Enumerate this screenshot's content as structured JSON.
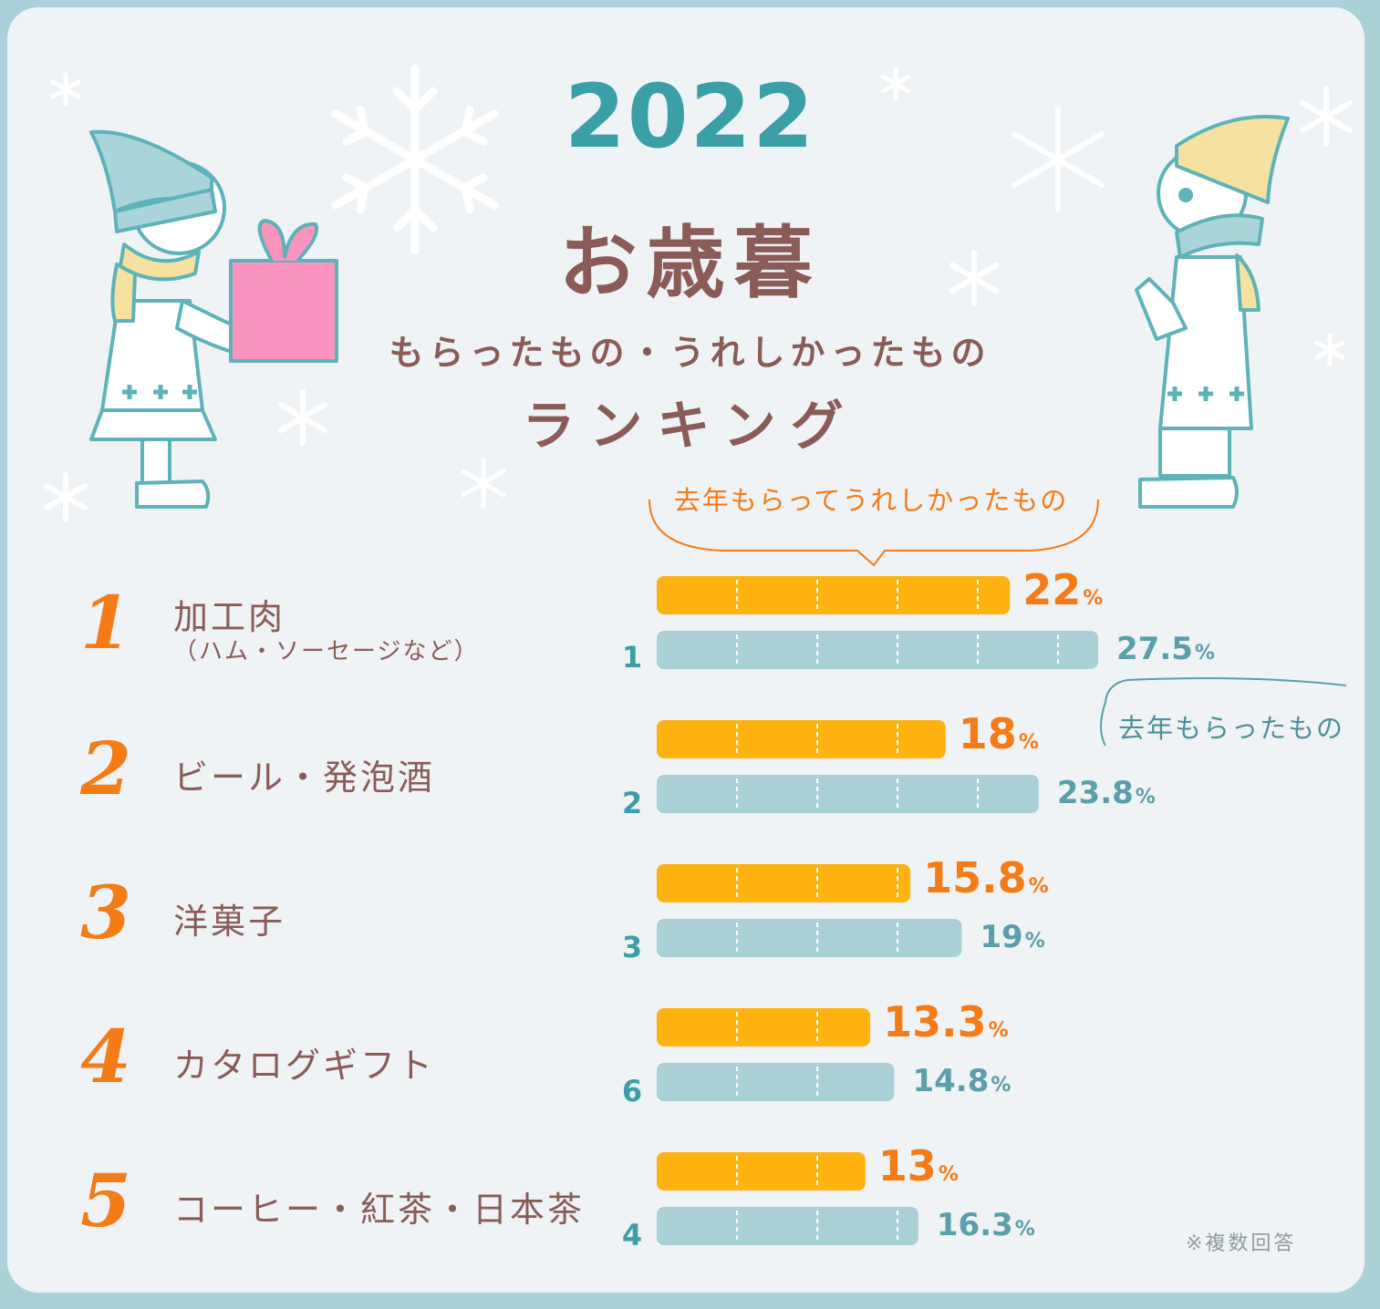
{
  "header": {
    "year": "2022",
    "title": "お歳暮",
    "subtitle": "もらったもの・うれしかったもの",
    "ranking_label": "ランキング"
  },
  "legend": {
    "current": "去年もらってうれしかったもの",
    "previous": "去年もらったもの"
  },
  "footnote": "※複数回答",
  "unit": "%",
  "colors": {
    "frame": "#a9d1d7",
    "background": "#eff3f6",
    "current_bar": "#fdb20f",
    "previous_bar": "#a9d1d7",
    "accent_orange": "#f47b16",
    "accent_teal": "#3b9fa7",
    "text_brown": "#8a5b57"
  },
  "chart_data": {
    "type": "bar",
    "orientation": "horizontal",
    "categories": [
      "加工肉（ハム・ソーセージなど）",
      "ビール・発泡酒",
      "洋菓子",
      "カタログギフト",
      "コーヒー・紅茶・日本茶"
    ],
    "series": [
      {
        "name": "去年もらってうれしかったもの",
        "values": [
          22,
          18,
          15.8,
          13.3,
          13
        ],
        "color": "#fdb20f"
      },
      {
        "name": "去年もらったもの",
        "values": [
          27.5,
          23.8,
          19,
          14.8,
          16.3
        ],
        "color": "#a9d1d7"
      }
    ],
    "xlim": [
      0,
      30
    ],
    "grid": true,
    "legend_position": "top"
  },
  "rows": [
    {
      "rank": "1",
      "name": "加工肉",
      "note": "（ハム・ソーセージなど）",
      "current_label": "22",
      "prev_label": "27.5",
      "prev_rank": "1"
    },
    {
      "rank": "2",
      "name": "ビール・発泡酒",
      "note": "",
      "current_label": "18",
      "prev_label": "23.8",
      "prev_rank": "2"
    },
    {
      "rank": "3",
      "name": "洋菓子",
      "note": "",
      "current_label": "15.8",
      "prev_label": "19",
      "prev_rank": "3"
    },
    {
      "rank": "4",
      "name": "カタログギフト",
      "note": "",
      "current_label": "13.3",
      "prev_label": "14.8",
      "prev_rank": "6"
    },
    {
      "rank": "5",
      "name": "コーヒー・紅茶・日本茶",
      "note": "",
      "current_label": "13",
      "prev_label": "16.3",
      "prev_rank": "4"
    }
  ]
}
